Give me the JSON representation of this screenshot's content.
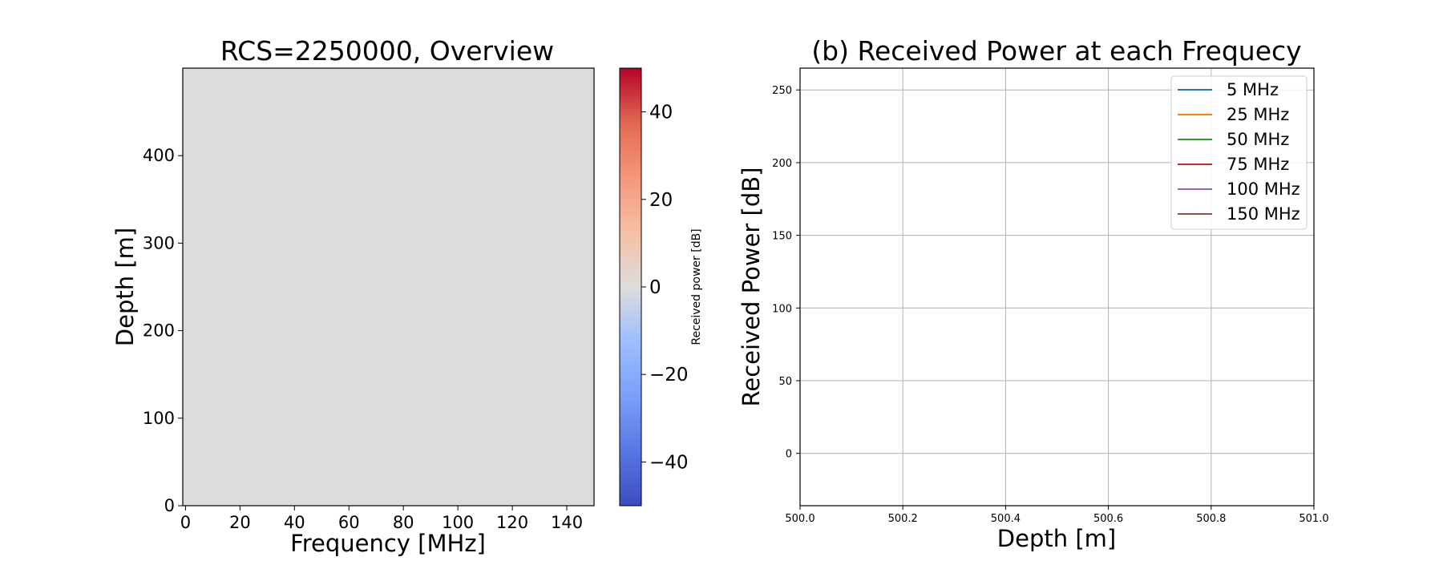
{
  "chart_data": [
    {
      "type": "heatmap",
      "title": "RCS=2250000, Overview",
      "xlabel": "Frequency [MHz]",
      "ylabel": "Depth [m]",
      "xlim": [
        -1,
        150
      ],
      "ylim": [
        0,
        500
      ],
      "xticks": [
        0,
        20,
        40,
        60,
        80,
        100,
        120,
        140
      ],
      "yticks": [
        0,
        100,
        200,
        300,
        400
      ],
      "value": 0,
      "colorbar": {
        "label": "Received power [dB]",
        "colormap": "coolwarm",
        "range": [
          -50,
          50
        ],
        "ticks": [
          -40,
          -20,
          0,
          20,
          40
        ],
        "tick_labels": [
          "−40",
          "−20",
          "0",
          "20",
          "40"
        ]
      }
    },
    {
      "type": "line",
      "title": "(b) Received Power at each Frequecy",
      "xlabel": "Depth [m]",
      "ylabel": "Received Power [dB]",
      "xlim": [
        500.0,
        501.0
      ],
      "ylim": [
        -36,
        265
      ],
      "xticks": [
        500.0,
        500.2,
        500.4,
        500.6,
        500.8,
        501.0
      ],
      "xtick_labels": [
        "500.0",
        "500.2",
        "500.4",
        "500.6",
        "500.8",
        "501.0"
      ],
      "yticks": [
        0,
        50,
        100,
        150,
        200,
        250
      ],
      "grid": true,
      "legend_position": "top-right",
      "series": [
        {
          "name": "5 MHz",
          "color": "#1f77b4",
          "values": []
        },
        {
          "name": "25 MHz",
          "color": "#ff7f0e",
          "values": []
        },
        {
          "name": "50 MHz",
          "color": "#2ca02c",
          "values": []
        },
        {
          "name": "75 MHz",
          "color": "#d62728",
          "values": []
        },
        {
          "name": "100 MHz",
          "color": "#9467bd",
          "values": []
        },
        {
          "name": "150 MHz",
          "color": "#8c564b",
          "values": []
        }
      ]
    }
  ]
}
